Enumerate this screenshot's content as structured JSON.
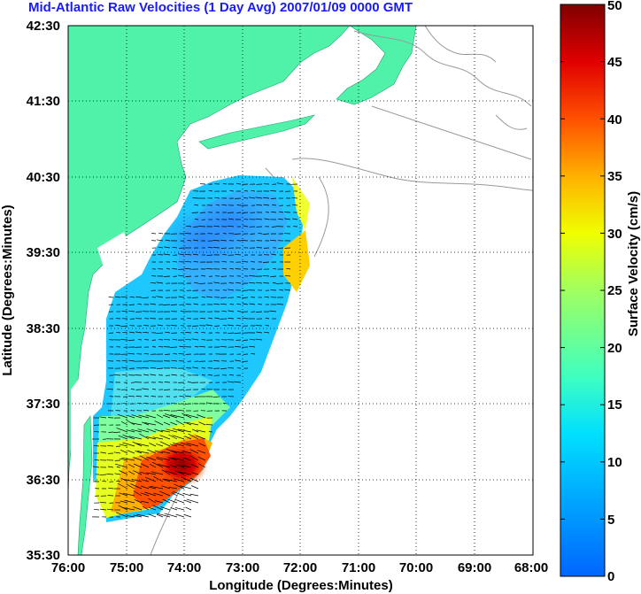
{
  "title": "Mid-Atlantic Raw Velocities (1 Day Avg) 2007/01/09 0000 GMT",
  "xlabel": "Longitude (Degrees:Minutes)",
  "ylabel": "Latitude (Degrees:Minutes)",
  "colorbar_label": "Surface Velocity (cm/s)",
  "x_ticks": [
    "76:00",
    "75:00",
    "74:00",
    "73:00",
    "72:00",
    "71:00",
    "70:00",
    "69:00",
    "68:00"
  ],
  "y_ticks": [
    "42:30",
    "41:30",
    "40:30",
    "39:30",
    "38:30",
    "37:30",
    "36:30",
    "35:30"
  ],
  "colorbar_ticks": [
    "50",
    "45",
    "40",
    "35",
    "30",
    "25",
    "20",
    "15",
    "10",
    "5",
    "0"
  ],
  "colors": {
    "land": "#4ff2a8",
    "coastline": "#999999",
    "grid": "#000000",
    "title": "#1a1aff"
  },
  "colorbar_range": [
    0,
    50
  ],
  "icons": [
    "velocity-arrow"
  ]
}
